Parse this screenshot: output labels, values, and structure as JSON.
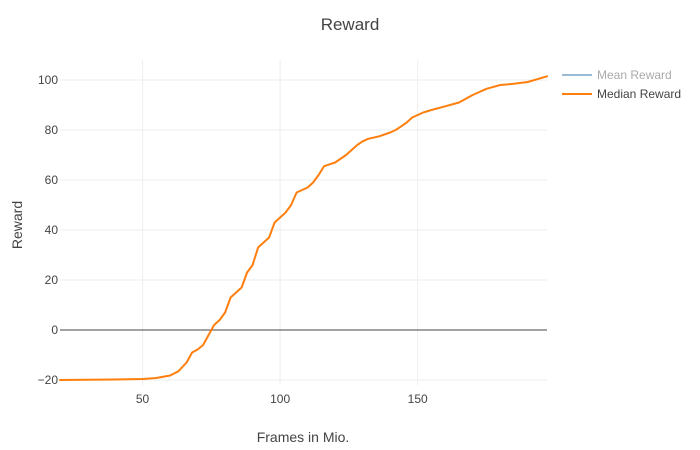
{
  "chart_data": {
    "type": "line",
    "title": "Reward",
    "xlabel": "Frames in Mio.",
    "ylabel": "Reward",
    "xlim": [
      20,
      197
    ],
    "ylim": [
      -22,
      108
    ],
    "x_ticks": [
      50,
      100,
      150
    ],
    "y_ticks": [
      -20,
      0,
      20,
      40,
      60,
      80,
      100
    ],
    "grid": true,
    "zero_line": true,
    "legend_position": "top-right",
    "series": [
      {
        "name": "Mean Reward",
        "color": "#9bbbd4",
        "legend_dimmed": true,
        "visible": false,
        "x": [],
        "y": []
      },
      {
        "name": "Median Reward",
        "color": "#ff7f0e",
        "visible": true,
        "x": [
          20,
          30,
          40,
          50,
          55,
          60,
          63,
          66,
          68,
          70,
          72,
          74,
          76,
          78,
          80,
          82,
          84,
          86,
          88,
          90,
          92,
          94,
          96,
          98,
          100,
          102,
          104,
          106,
          108,
          110,
          112,
          114,
          116,
          118,
          120,
          124,
          128,
          130,
          132,
          136,
          140,
          142,
          144,
          146,
          148,
          150,
          152,
          155,
          160,
          165,
          170,
          175,
          180,
          185,
          190,
          197
        ],
        "y": [
          -20,
          -19.9,
          -19.8,
          -19.6,
          -19.2,
          -18.2,
          -16.5,
          -13,
          -9,
          -7.8,
          -6,
          -2,
          2,
          4,
          7,
          13,
          15,
          17,
          23,
          26,
          33,
          35,
          37,
          43,
          45,
          47,
          50,
          55,
          56,
          57,
          59,
          62,
          65.5,
          66.3,
          67,
          70,
          74,
          75.5,
          76.5,
          77.5,
          79,
          80,
          81.5,
          83,
          85,
          86,
          87,
          88,
          89.5,
          91,
          94,
          96.5,
          98,
          98.5,
          99.2,
          101.5
        ]
      }
    ]
  }
}
